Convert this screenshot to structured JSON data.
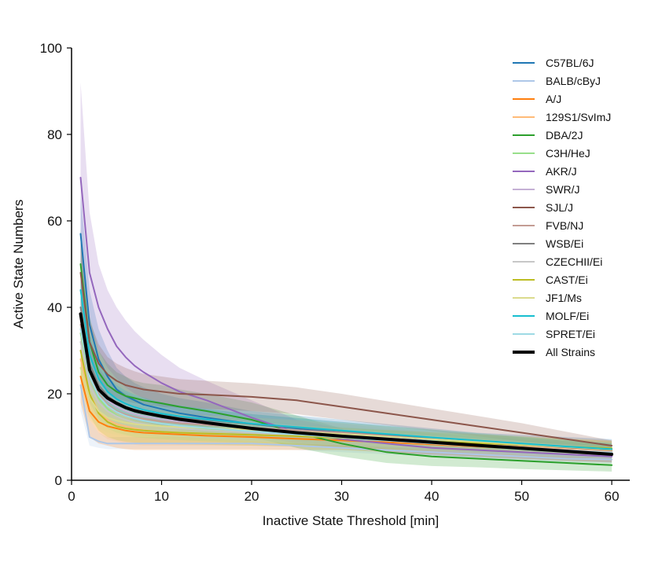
{
  "chart_data": {
    "type": "line",
    "title": "",
    "xlabel": "Inactive State Threshold [min]",
    "ylabel": "Active State Numbers",
    "xlim": [
      0,
      62
    ],
    "ylim": [
      0,
      100
    ],
    "xticks": [
      0,
      10,
      20,
      30,
      40,
      50,
      60
    ],
    "yticks": [
      0,
      20,
      40,
      60,
      80,
      100
    ],
    "grid": false,
    "legend_position": "top-right",
    "x": [
      1,
      2,
      3,
      4,
      5,
      6,
      7,
      8,
      10,
      12,
      15,
      20,
      25,
      30,
      35,
      40,
      45,
      50,
      55,
      60
    ],
    "series": [
      {
        "name": "C57BL/6J",
        "color": "#1f77b4",
        "values": [
          57,
          36,
          28,
          24,
          21,
          19.5,
          18.5,
          17.5,
          16.5,
          15.5,
          14.5,
          13,
          12,
          11,
          10,
          9,
          8.5,
          8,
          7.5,
          7
        ],
        "band_lower": [
          44,
          28,
          21,
          18,
          16,
          15,
          14,
          13.5,
          12.5,
          11.5,
          11,
          10,
          9,
          8,
          7.5,
          7,
          6.5,
          6,
          5.5,
          5
        ],
        "band_upper": [
          66,
          44,
          35,
          30,
          26,
          24,
          22.5,
          21.5,
          20,
          19,
          18,
          16,
          15,
          14,
          13,
          12,
          11,
          10.5,
          10,
          9.5
        ]
      },
      {
        "name": "BALB/cByJ",
        "color": "#aec7e8",
        "values": [
          22,
          10,
          9,
          8.5,
          8.5,
          8.5,
          8.5,
          8.5,
          8.5,
          8.5,
          8.5,
          8.5,
          8,
          7.5,
          7,
          6.5,
          6,
          5.5,
          5,
          4.8
        ],
        "band_lower": [
          16,
          8,
          7.5,
          7.2,
          7.2,
          7.2,
          7.2,
          7.2,
          7.2,
          7.2,
          7.2,
          7.2,
          7,
          6.5,
          6,
          5.5,
          5,
          4.5,
          4.2,
          4
        ],
        "band_upper": [
          30,
          14,
          11,
          10,
          10,
          10,
          10,
          10,
          10,
          10,
          10,
          10,
          9.5,
          9,
          8.5,
          8,
          7.5,
          7,
          6.5,
          6
        ]
      },
      {
        "name": "A/J",
        "color": "#ff7f0e",
        "values": [
          24,
          16,
          13.5,
          12.5,
          12,
          11.5,
          11.2,
          11,
          10.8,
          10.6,
          10.3,
          10,
          9.6,
          9.2,
          8.8,
          8.3,
          7.8,
          7.3,
          6.8,
          6.4
        ],
        "band_lower": [
          18,
          10,
          8.5,
          8,
          7.5,
          7.2,
          7,
          7,
          7,
          7,
          7,
          7,
          7,
          7,
          6.5,
          6,
          5.5,
          5,
          4.5,
          4.2
        ],
        "band_upper": [
          30,
          21,
          18,
          16,
          15,
          14.5,
          14,
          13.5,
          13,
          12.8,
          12.5,
          12,
          11.5,
          11,
          10.5,
          10,
          9.5,
          9,
          8.5,
          8
        ]
      },
      {
        "name": "129S1/SvImJ",
        "color": "#ffbb78",
        "values": [
          28,
          20,
          16,
          14,
          13,
          12.5,
          12,
          11.6,
          11.2,
          11,
          10.8,
          10.5,
          10.2,
          9.8,
          9.3,
          8.8,
          8.3,
          7.8,
          7.3,
          6.8
        ],
        "band_lower": [
          22,
          14,
          11,
          9.5,
          9,
          8.5,
          8.2,
          8,
          8,
          8,
          8,
          8,
          7.8,
          7.5,
          7,
          6.5,
          6,
          5.5,
          5,
          4.6
        ],
        "band_upper": [
          36,
          26,
          21,
          18,
          17,
          16,
          15.5,
          15,
          14.5,
          14,
          13.6,
          13,
          12.6,
          12.2,
          11.7,
          11.2,
          10.7,
          10.2,
          9.7,
          9.2
        ]
      },
      {
        "name": "DBA/2J",
        "color": "#2ca02c",
        "values": [
          50,
          32,
          25,
          22,
          20.5,
          19.5,
          19,
          18.5,
          17.8,
          17,
          16,
          14,
          11,
          8.5,
          6.5,
          5.5,
          5,
          4.5,
          4,
          3.5
        ],
        "band_lower": [
          40,
          26,
          20,
          17,
          15.5,
          14.8,
          14.3,
          14,
          13.5,
          13,
          12,
          10,
          7.5,
          5.5,
          4,
          3.3,
          3,
          2.6,
          2.3,
          2
        ],
        "band_upper": [
          58,
          38,
          30,
          27,
          25,
          24,
          23,
          22.5,
          22,
          21,
          20,
          18,
          15,
          12,
          9.5,
          8,
          7.2,
          6.6,
          6,
          5.5
        ]
      },
      {
        "name": "C3H/HeJ",
        "color": "#98df8a",
        "values": [
          34,
          24,
          19,
          16.5,
          15,
          14,
          13.5,
          13,
          12.5,
          12.2,
          11.8,
          11.2,
          10.6,
          10,
          9.4,
          8.8,
          8.2,
          7.6,
          7,
          6.5
        ],
        "band_lower": [
          28,
          18,
          14,
          12,
          11,
          10.5,
          10,
          9.8,
          9.5,
          9.3,
          9,
          8.6,
          8.2,
          7.8,
          7.3,
          6.8,
          6.3,
          5.8,
          5.3,
          4.8
        ],
        "band_upper": [
          40,
          30,
          24,
          21,
          19,
          17.8,
          17,
          16.5,
          16,
          15.4,
          14.8,
          14,
          13.2,
          12.4,
          11.6,
          10.8,
          10.2,
          9.6,
          9,
          8.4
        ]
      },
      {
        "name": "AKR/J",
        "color": "#9467bd",
        "values": [
          70,
          48,
          40,
          35,
          31,
          28.5,
          26.5,
          25,
          22.5,
          20.5,
          18.5,
          14.5,
          11,
          9.5,
          8.5,
          7.5,
          7,
          6.5,
          6,
          5.5
        ],
        "band_lower": [
          50,
          36,
          30,
          26,
          23.5,
          21.5,
          20,
          19,
          17,
          15.5,
          13.5,
          10.5,
          8.5,
          7.5,
          6.6,
          5.8,
          5.3,
          4.9,
          4.5,
          4.1
        ],
        "band_upper": [
          92,
          62,
          50,
          44,
          40,
          37,
          34.5,
          32.5,
          29,
          26,
          23,
          18.5,
          14,
          12,
          10.8,
          9.8,
          9,
          8.4,
          7.8,
          7.2
        ]
      },
      {
        "name": "SWR/J",
        "color": "#c5b0d5",
        "values": [
          38,
          26,
          21,
          18.5,
          17,
          16,
          15.3,
          14.8,
          14.1,
          13.6,
          13,
          12.2,
          11.4,
          10.6,
          9.8,
          9,
          8.3,
          7.6,
          7,
          6.5
        ],
        "band_lower": [
          30,
          20,
          16,
          14,
          13,
          12.2,
          11.7,
          11.3,
          10.8,
          10.4,
          10,
          9.4,
          8.8,
          8.2,
          7.6,
          7,
          6.4,
          5.9,
          5.4,
          5
        ],
        "band_upper": [
          46,
          32,
          26,
          23,
          21,
          19.8,
          19,
          18.3,
          17.4,
          16.8,
          16,
          15,
          14,
          13,
          12,
          11,
          10.2,
          9.4,
          8.7,
          8
        ]
      },
      {
        "name": "SJL/J",
        "color": "#8c564b",
        "values": [
          48,
          32,
          27,
          24.5,
          23,
          22,
          21.5,
          21,
          20.5,
          20,
          19.8,
          19.3,
          18.5,
          17,
          15.5,
          14,
          12.5,
          11,
          9.5,
          8
        ],
        "band_lower": [
          40,
          27,
          22.5,
          20.5,
          19,
          18.3,
          17.8,
          17.5,
          17,
          16.8,
          16.5,
          16,
          15.3,
          14,
          12.7,
          11.4,
          10.2,
          9,
          7.8,
          6.6
        ],
        "band_upper": [
          56,
          37,
          31.5,
          28.5,
          27,
          26,
          25.2,
          24.6,
          24,
          23.4,
          23,
          22.4,
          21.5,
          20,
          18.3,
          16.6,
          14.9,
          13.2,
          11.2,
          9.2
        ]
      },
      {
        "name": "FVB/NJ",
        "color": "#c49c94",
        "values": [
          36,
          25,
          20,
          17.5,
          16,
          15.2,
          14.6,
          14.2,
          13.6,
          13.2,
          12.8,
          12.2,
          11.6,
          11,
          10.3,
          9.6,
          8.9,
          8.2,
          7.6,
          7
        ],
        "band_lower": [
          30,
          20,
          16,
          14,
          12.8,
          12.2,
          11.7,
          11.3,
          10.9,
          10.6,
          10.3,
          9.8,
          9.3,
          8.8,
          8.2,
          7.6,
          7,
          6.5,
          6,
          5.5
        ],
        "band_upper": [
          42,
          30,
          24,
          21,
          19.2,
          18.2,
          17.5,
          17,
          16.3,
          15.8,
          15.3,
          14.6,
          13.9,
          13.2,
          12.4,
          11.6,
          10.8,
          10,
          9.2,
          8.5
        ]
      },
      {
        "name": "WSB/Ei",
        "color": "#7f7f7f",
        "values": [
          40,
          27,
          22,
          19.5,
          18,
          17,
          16.3,
          15.8,
          15,
          14.5,
          13.9,
          13,
          12.2,
          11.4,
          10.6,
          9.8,
          9,
          8.3,
          7.6,
          7
        ],
        "band_lower": [
          33,
          22,
          18,
          16,
          14.7,
          13.9,
          13.3,
          12.9,
          12.3,
          11.9,
          11.4,
          10.7,
          10,
          9.3,
          8.6,
          7.9,
          7.3,
          6.7,
          6.1,
          5.6
        ],
        "band_upper": [
          47,
          32,
          26,
          23,
          21.3,
          20.1,
          19.3,
          18.7,
          17.7,
          17.1,
          16.4,
          15.3,
          14.4,
          13.5,
          12.6,
          11.7,
          10.7,
          9.9,
          9.1,
          8.4
        ]
      },
      {
        "name": "CZECHII/Ei",
        "color": "#c7c7c7",
        "values": [
          32,
          22,
          18,
          16,
          14.8,
          14,
          13.4,
          13,
          12.4,
          12,
          11.6,
          11,
          10.4,
          9.8,
          9.2,
          8.6,
          8,
          7.4,
          6.9,
          6.4
        ],
        "band_lower": [
          26,
          18,
          14.5,
          12.8,
          11.8,
          11.2,
          10.7,
          10.4,
          9.9,
          9.6,
          9.3,
          8.8,
          8.3,
          7.8,
          7.3,
          6.8,
          6.3,
          5.8,
          5.4,
          5
        ],
        "band_upper": [
          38,
          26,
          21.5,
          19.2,
          17.8,
          16.8,
          16.1,
          15.6,
          14.9,
          14.4,
          13.9,
          13.2,
          12.5,
          11.8,
          11.1,
          10.4,
          9.7,
          9,
          8.4,
          7.8
        ]
      },
      {
        "name": "CAST/Ei",
        "color": "#bcbd22",
        "values": [
          30,
          20,
          15.5,
          13.5,
          12.5,
          12,
          11.7,
          11.5,
          11.2,
          11,
          10.8,
          10.5,
          10.2,
          9.8,
          9.4,
          9,
          8.6,
          8.2,
          7.8,
          7.4
        ],
        "band_lower": [
          24,
          15,
          11.5,
          10,
          9.3,
          8.9,
          8.7,
          8.6,
          8.4,
          8.3,
          8.2,
          8,
          7.8,
          7.5,
          7.2,
          6.9,
          6.6,
          6.3,
          6,
          5.7
        ],
        "band_upper": [
          36,
          25,
          19.5,
          17,
          15.7,
          15.1,
          14.7,
          14.4,
          14,
          13.7,
          13.4,
          13,
          12.6,
          12.1,
          11.6,
          11.1,
          10.6,
          10.1,
          9.6,
          9.1
        ]
      },
      {
        "name": "JF1/Ms",
        "color": "#dbdb8d",
        "values": [
          26,
          19,
          16,
          14.5,
          13.8,
          13.3,
          13,
          12.8,
          12.5,
          12.3,
          12.1,
          11.7,
          11.2,
          10.7,
          10.1,
          9.5,
          8.9,
          8.3,
          7.7,
          7.1
        ],
        "band_lower": [
          20,
          14,
          12,
          11,
          10.5,
          10.2,
          10,
          9.8,
          9.6,
          9.4,
          9.2,
          8.9,
          8.5,
          8.1,
          7.7,
          7.3,
          6.9,
          6.5,
          6.1,
          5.7
        ],
        "band_upper": [
          32,
          24,
          20,
          18,
          17.1,
          16.4,
          16,
          15.8,
          15.4,
          15.2,
          15,
          14.5,
          13.9,
          13.3,
          12.5,
          11.7,
          10.9,
          10.1,
          9.3,
          8.5
        ]
      },
      {
        "name": "MOLF/Ei",
        "color": "#17becf",
        "values": [
          44,
          29,
          23.5,
          20.5,
          18.8,
          17.7,
          16.9,
          16.3,
          15.4,
          14.8,
          14.1,
          13.1,
          12.3,
          11.5,
          10.7,
          9.9,
          9.2,
          8.5,
          7.8,
          7.2
        ],
        "band_lower": [
          37,
          24,
          19.5,
          17,
          15.6,
          14.7,
          14,
          13.5,
          12.8,
          12.3,
          11.7,
          10.9,
          10.2,
          9.5,
          8.8,
          8.1,
          7.5,
          6.9,
          6.3,
          5.8
        ],
        "band_upper": [
          51,
          34,
          27.5,
          24,
          22,
          20.7,
          19.8,
          19.1,
          18,
          17.3,
          16.5,
          15.3,
          14.4,
          13.5,
          12.6,
          11.7,
          10.9,
          10.1,
          9.3,
          8.6
        ]
      },
      {
        "name": "SPRET/Ei",
        "color": "#9edae5",
        "values": [
          35,
          24,
          19.5,
          17.2,
          15.8,
          14.9,
          14.3,
          13.8,
          13.1,
          12.6,
          12.1,
          11.3,
          10.6,
          9.9,
          9.2,
          8.5,
          7.9,
          7.3,
          6.8,
          6.3
        ],
        "band_lower": [
          29,
          19.5,
          15.7,
          13.8,
          12.7,
          12,
          11.5,
          11.1,
          10.5,
          10.1,
          9.7,
          9.1,
          8.5,
          7.9,
          7.4,
          6.8,
          6.3,
          5.8,
          5.4,
          5
        ],
        "band_upper": [
          41,
          28.5,
          23.3,
          20.6,
          18.9,
          17.8,
          17.1,
          16.5,
          15.7,
          15.1,
          14.5,
          13.5,
          12.7,
          11.9,
          11,
          10.2,
          9.5,
          8.8,
          8.2,
          7.6
        ]
      },
      {
        "name": "All Strains",
        "color": "#000000",
        "values": [
          38.5,
          25.5,
          21,
          19,
          17.8,
          16.8,
          16.1,
          15.6,
          14.8,
          14.1,
          13.3,
          12,
          11,
          10.2,
          9.5,
          8.8,
          8.1,
          7.4,
          6.7,
          6
        ]
      }
    ]
  }
}
